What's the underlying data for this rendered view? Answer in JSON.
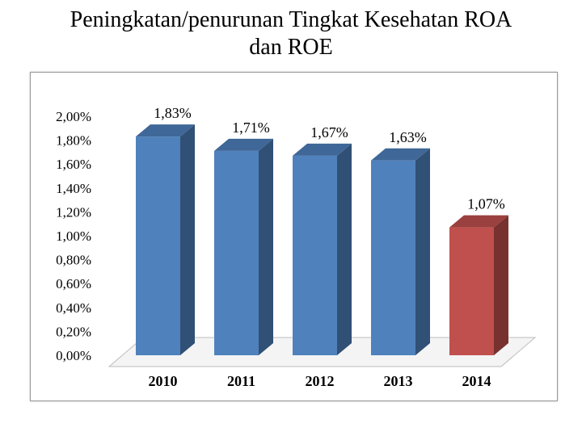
{
  "title_line1": "Peningkatan/penurunan Tingkat Kesehatan ROA",
  "title_line2": "dan ROE",
  "colors": {
    "normal": "#4f81bd",
    "highlight": "#c0504d"
  },
  "chart_data": {
    "type": "bar",
    "title": "Peningkatan/penurunan Tingkat Kesehatan ROA dan ROE",
    "categories": [
      "2010",
      "2011",
      "2012",
      "2013",
      "2014"
    ],
    "values": [
      1.83,
      1.71,
      1.67,
      1.63,
      1.07
    ],
    "data_labels": [
      "1,83%",
      "1,71%",
      "1,67%",
      "1,63%",
      "1,07%"
    ],
    "y_ticks": [
      "0,00%",
      "0,20%",
      "0,40%",
      "0,60%",
      "0,80%",
      "1,00%",
      "1,20%",
      "1,40%",
      "1,60%",
      "1,80%",
      "2,00%"
    ],
    "ylim": [
      0,
      2.0
    ],
    "highlight_index": 4,
    "grid": false,
    "legend": "none",
    "style": "3d-column"
  }
}
